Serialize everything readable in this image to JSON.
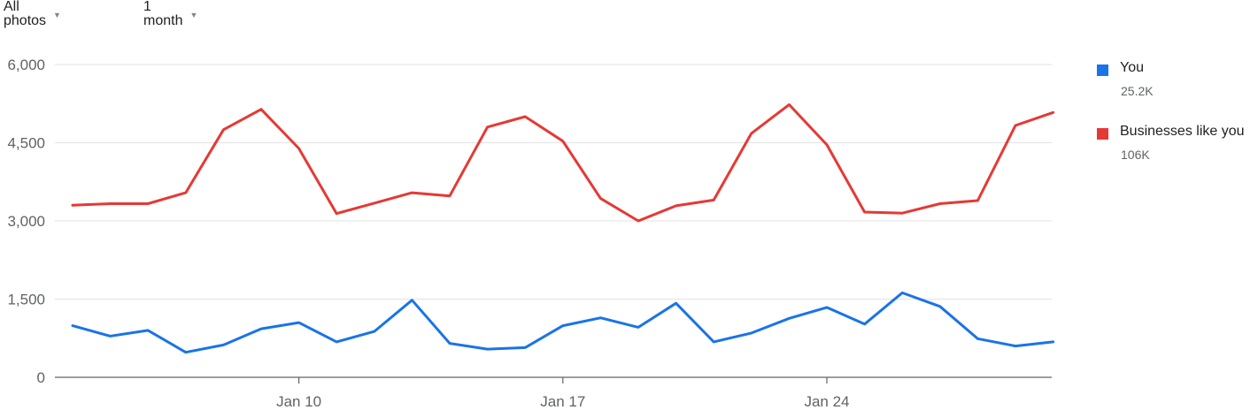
{
  "filters": {
    "photo_type": "All photos",
    "time_range": "1 month"
  },
  "legend": [
    {
      "name": "You",
      "value": "25.2K",
      "color": "#1a73e8"
    },
    {
      "name": "Businesses like you",
      "value": "106K",
      "color": "#e53935"
    }
  ],
  "chart_data": {
    "type": "line",
    "x": [
      "Jan 4",
      "Jan 5",
      "Jan 6",
      "Jan 7",
      "Jan 8",
      "Jan 9",
      "Jan 10",
      "Jan 11",
      "Jan 12",
      "Jan 13",
      "Jan 14",
      "Jan 15",
      "Jan 16",
      "Jan 17",
      "Jan 18",
      "Jan 19",
      "Jan 20",
      "Jan 21",
      "Jan 22",
      "Jan 23",
      "Jan 24",
      "Jan 25",
      "Jan 26",
      "Jan 27",
      "Jan 28",
      "Jan 29",
      "Jan 30"
    ],
    "x_tick_labels": [
      "Jan 10",
      "Jan 17",
      "Jan 24"
    ],
    "y_tick_labels": [
      "0",
      "1,500",
      "3,000",
      "4,500",
      "6,000"
    ],
    "ylim": [
      0,
      6000
    ],
    "grid": true,
    "legend_position": "right",
    "series": [
      {
        "name": "You",
        "color": "#1a73e8",
        "values": [
          990,
          790,
          900,
          480,
          620,
          930,
          1050,
          680,
          880,
          1480,
          650,
          540,
          570,
          990,
          1140,
          960,
          1420,
          680,
          850,
          1130,
          1340,
          1020,
          1620,
          1360,
          740,
          600,
          680
        ]
      },
      {
        "name": "Businesses like you",
        "color": "#e53935",
        "values": [
          3300,
          3330,
          3330,
          3540,
          4750,
          5140,
          4390,
          3140,
          3340,
          3540,
          3480,
          4800,
          5000,
          4530,
          3430,
          3000,
          3290,
          3400,
          4680,
          5230,
          4460,
          3170,
          3150,
          3330,
          3390,
          4830,
          5080
        ]
      }
    ]
  }
}
